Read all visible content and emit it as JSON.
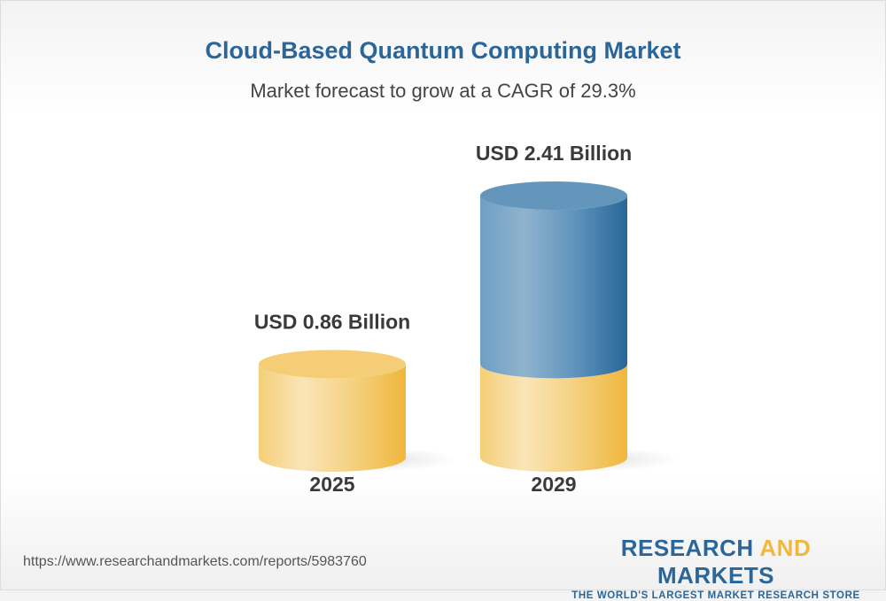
{
  "chart_data": {
    "type": "bar",
    "style": "3d-cylinder",
    "title": "Cloud-Based Quantum Computing Market",
    "subtitle": "Market forecast to grow at a CAGR of 29.3%",
    "categories": [
      "2025",
      "2029"
    ],
    "values": [
      0.86,
      2.41
    ],
    "data_labels": [
      "USD 0.86 Billion",
      "USD 2.41 Billion"
    ],
    "unit": "USD Billion",
    "colors": {
      "base": "#f2c35c",
      "growth": "#3a78a8"
    }
  },
  "footer": {
    "url": "https://www.researchandmarkets.com/reports/5983760",
    "logo_word1": "RESEARCH ",
    "logo_word2": "AND",
    "logo_word3": " MARKETS",
    "logo_tagline": "THE WORLD'S LARGEST MARKET RESEARCH STORE"
  }
}
